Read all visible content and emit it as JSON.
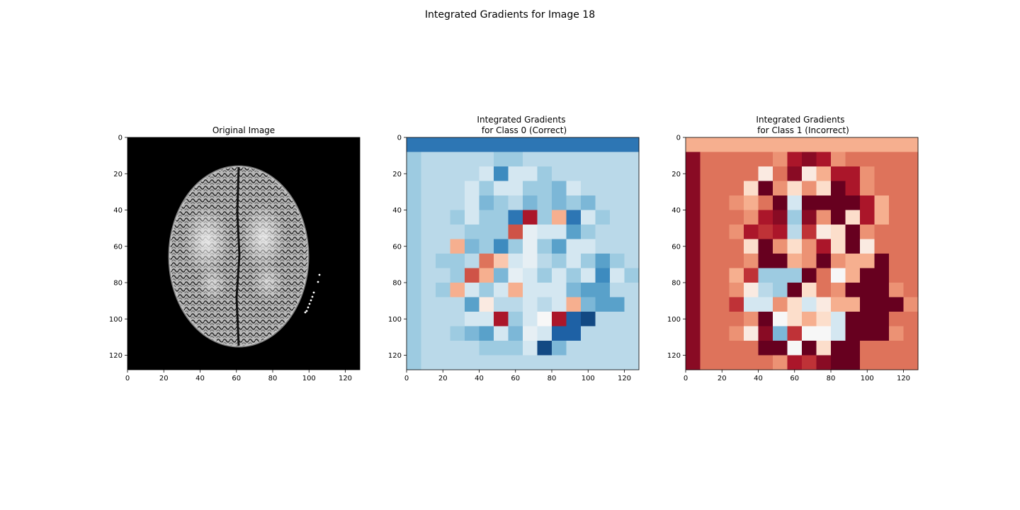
{
  "figure": {
    "suptitle": "Integrated Gradients for Image 18"
  },
  "chart_data": [
    {
      "type": "heatmap",
      "title": "Original Image",
      "colormap": "gray",
      "x_ticks": [
        "0",
        "20",
        "40",
        "60",
        "80",
        "100",
        "120"
      ],
      "y_ticks": [
        "0",
        "20",
        "40",
        "60",
        "80",
        "100",
        "120"
      ],
      "xlim": [
        0,
        128
      ],
      "ylim": [
        128,
        0
      ],
      "content": "grayscale axial brain MRI slice"
    },
    {
      "type": "heatmap",
      "title_lines": [
        "Integrated Gradients",
        "for Class 0 (Correct)"
      ],
      "colormap": "RdBu",
      "x_ticks": [
        "0",
        "20",
        "40",
        "60",
        "80",
        "100",
        "120"
      ],
      "y_ticks": [
        "0",
        "20",
        "40",
        "60",
        "80",
        "100",
        "120"
      ],
      "xlim": [
        0,
        128
      ],
      "ylim": [
        128,
        0
      ],
      "grid_rows": 16,
      "grid_cols": 16,
      "values": [
        "DDDDDDDDDDDDDDDD",
        "HIIIIIHHIIIIIIII",
        "HIIIIJEJJHIIIIII",
        "HIIIJHJJHHGJIIII",
        "HIIIJGHIGHGHGIII",
        "HIIHJHHDUHPDJHII",
        "HIIIHHHSKJJFHIII",
        "HIIPGHEHKHFJJIII",
        "HIHHIROJKIHJHFHI",
        "HIIHSPGKJHJHJEJH",
        "HIHPJHJPJJJGFFII",
        "HIIIFMIIJIJPGFFI",
        "HIIIJJUHJLUCBIII",
        "HIIHGFJGKJCCIIII",
        "HIIIIHHHJBGIIIII",
        "HIIIIIIIIIIIIIII"
      ]
    },
    {
      "type": "heatmap",
      "title_lines": [
        "Integrated Gradients",
        "for Class 1 (Incorrect)"
      ],
      "colormap": "RdBu",
      "x_ticks": [
        "0",
        "20",
        "40",
        "60",
        "80",
        "100",
        "120"
      ],
      "y_ticks": [
        "0",
        "20",
        "40",
        "60",
        "80",
        "100",
        "120"
      ],
      "xlim": [
        0,
        128
      ],
      "ylim": [
        128,
        0
      ],
      "grid_rows": 16,
      "grid_cols": 16,
      "values": [
        "PPPPPPPPPPPPPPPP",
        "VRRRRRQUVUQRRRRR",
        "VRRRRMRVMPUUQRRR",
        "VRRRNWQNQNWUQRRR",
        "VRRQPRWJWWWWUPRR",
        "VRRRQUVHVQWNUPRR",
        "VRRQUTUITMNWQRRR",
        "VRRRNWQNQUNWMRRR",
        "VRRRQWWPQWQPPWRR",
        "VRRPTHHHWRLPWWRR",
        "VRRQMIHWNRQWWWQR",
        "VRRTJJQNJMPPWWWQ",
        "VRRRQWLNPNJWWWRR",
        "VRRQMVGTLLJWWWQR",
        "VRRRRWWLWNWWRRRR",
        "VRRRRRQUTVWWRRRR"
      ]
    }
  ]
}
